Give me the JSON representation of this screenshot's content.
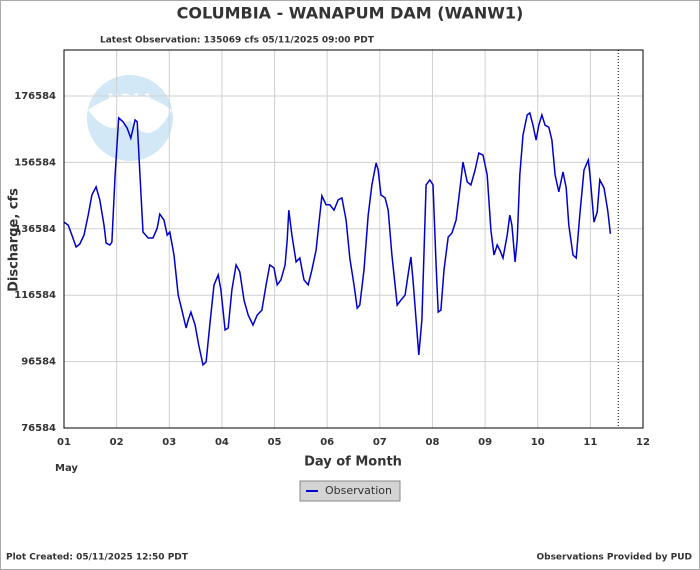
{
  "chart_data": {
    "type": "line",
    "title": "COLUMBIA - WANAPUM DAM  (WANW1)",
    "subtitle": "Latest Observation: 135069 cfs 05/11/2025 09:00 PDT",
    "ylabel": "Discharge, cfs",
    "xlabel": "Day of Month",
    "month_label": "May",
    "logo_text": "NOAA",
    "footer_left": "Plot Created: 05/11/2025 12:50 PDT",
    "footer_right": "Observations Provided by PUD",
    "legend": "bottom",
    "grid": true,
    "current_time": 11.53,
    "xlim": [
      1,
      12
    ],
    "xticks": [
      {
        "value": 1,
        "label": "01"
      },
      {
        "value": 2,
        "label": "02"
      },
      {
        "value": 3,
        "label": "03"
      },
      {
        "value": 4,
        "label": "04"
      },
      {
        "value": 5,
        "label": "05"
      },
      {
        "value": 6,
        "label": "06"
      },
      {
        "value": 7,
        "label": "07"
      },
      {
        "value": 8,
        "label": "08"
      },
      {
        "value": 9,
        "label": "09"
      },
      10,
      11,
      12
    ],
    "ylim": [
      76584,
      190440
    ],
    "yticks": [
      76584,
      96584,
      116584,
      136584,
      156584,
      176584
    ],
    "x": [
      1.0,
      1.08,
      1.15,
      1.23,
      1.3,
      1.38,
      1.46,
      1.53,
      1.61,
      1.68,
      1.76,
      1.8,
      1.87,
      1.91,
      1.97,
      2.04,
      2.12,
      2.2,
      2.27,
      2.35,
      2.39,
      2.44,
      2.5,
      2.6,
      2.69,
      2.77,
      2.82,
      2.9,
      2.96,
      3.01,
      3.09,
      3.17,
      3.24,
      3.32,
      3.36,
      3.41,
      3.49,
      3.56,
      3.64,
      3.7,
      3.77,
      3.85,
      3.93,
      3.98,
      4.06,
      4.12,
      4.19,
      4.27,
      4.34,
      4.42,
      4.5,
      4.59,
      4.67,
      4.76,
      4.84,
      4.91,
      4.99,
      5.05,
      5.12,
      5.2,
      5.24,
      5.27,
      5.33,
      5.41,
      5.48,
      5.56,
      5.64,
      5.71,
      5.79,
      5.86,
      5.9,
      5.98,
      6.05,
      6.13,
      6.21,
      6.28,
      6.36,
      6.43,
      6.51,
      6.57,
      6.62,
      6.7,
      6.78,
      6.85,
      6.93,
      6.97,
      7.02,
      7.1,
      7.16,
      7.23,
      7.33,
      7.4,
      7.48,
      7.55,
      7.59,
      7.63,
      7.69,
      7.74,
      7.8,
      7.88,
      7.95,
      8.01,
      8.07,
      8.11,
      8.16,
      8.22,
      8.3,
      8.37,
      8.45,
      8.52,
      8.58,
      8.66,
      8.73,
      8.81,
      8.88,
      8.96,
      9.04,
      9.11,
      9.17,
      9.23,
      9.28,
      9.34,
      9.42,
      9.47,
      9.51,
      9.57,
      9.61,
      9.66,
      9.72,
      9.8,
      9.85,
      9.91,
      9.97,
      10.02,
      10.08,
      10.14,
      10.21,
      10.27,
      10.33,
      10.4,
      10.48,
      10.54,
      10.59,
      10.67,
      10.73,
      10.8,
      10.88,
      10.96,
      10.99,
      11.07,
      11.13,
      11.18,
      11.26,
      11.33,
      11.38
    ],
    "series": [
      {
        "name": "Observation",
        "color": "#0000cc",
        "values": [
          138600,
          137700,
          134700,
          131100,
          132000,
          134700,
          140700,
          146800,
          149200,
          145300,
          137700,
          132300,
          131700,
          132600,
          152800,
          170000,
          168800,
          166900,
          163900,
          169400,
          168800,
          153700,
          135600,
          133800,
          133800,
          136800,
          141000,
          139200,
          134700,
          135600,
          128700,
          116600,
          112100,
          106700,
          109100,
          111500,
          107600,
          101600,
          95600,
          96500,
          107600,
          119700,
          122700,
          118200,
          106100,
          106700,
          118200,
          125700,
          123600,
          115100,
          110600,
          107600,
          110600,
          112100,
          119700,
          125700,
          124800,
          119700,
          121200,
          125700,
          133200,
          142200,
          134700,
          126600,
          127800,
          121200,
          119700,
          124200,
          130200,
          140700,
          146500,
          143800,
          143800,
          142200,
          145300,
          145900,
          139200,
          127800,
          119700,
          112700,
          113600,
          124200,
          140700,
          149800,
          156400,
          154300,
          146800,
          145900,
          142200,
          128700,
          113600,
          115100,
          116600,
          124200,
          128100,
          121200,
          109100,
          98600,
          109100,
          149800,
          151300,
          149800,
          125700,
          111500,
          112100,
          124200,
          134100,
          135300,
          139200,
          148300,
          156700,
          150700,
          149800,
          154300,
          159400,
          158800,
          152800,
          136200,
          128700,
          131700,
          130200,
          127800,
          134700,
          140700,
          137700,
          126600,
          133200,
          152800,
          164800,
          170900,
          171500,
          167800,
          163300,
          167800,
          170900,
          167800,
          167200,
          163300,
          152800,
          147700,
          153700,
          148900,
          137700,
          128700,
          127800,
          140700,
          154300,
          157300,
          153400,
          138600,
          141600,
          151300,
          148900,
          142200,
          135069
        ]
      }
    ]
  }
}
